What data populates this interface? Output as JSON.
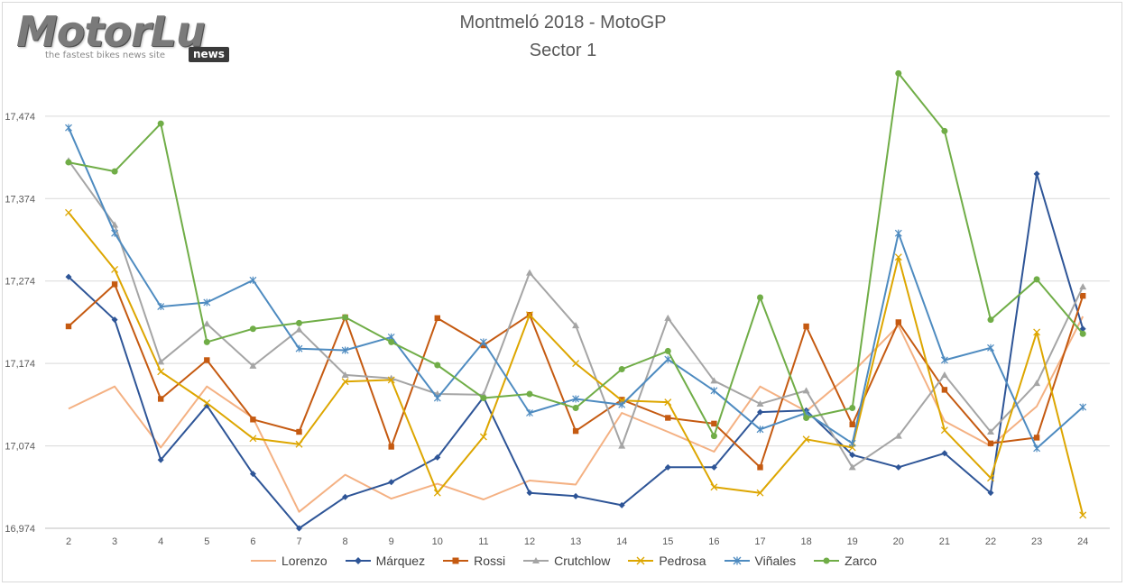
{
  "logo": {
    "brand": "MotorLu",
    "tagline": "the fastest bikes news site",
    "badge": "news"
  },
  "chart_data": {
    "type": "line",
    "title": "Montmeló 2018 - MotoGP",
    "subtitle": "Sector 1",
    "xlabel": "",
    "ylabel": "",
    "categories": [
      "2",
      "3",
      "4",
      "5",
      "6",
      "7",
      "8",
      "9",
      "10",
      "11",
      "12",
      "13",
      "14",
      "15",
      "16",
      "17",
      "18",
      "19",
      "20",
      "21",
      "22",
      "23",
      "24"
    ],
    "ylim": [
      16.974,
      17.534
    ],
    "yticks": [
      16.974,
      17.074,
      17.174,
      17.274,
      17.374,
      17.474
    ],
    "ytick_labels": [
      "16,974",
      "17,074",
      "17,174",
      "17,274",
      "17,374",
      "17,474"
    ],
    "grid": true,
    "legend": "bottom",
    "series": [
      {
        "name": "Lorenzo",
        "color": "#F4B183",
        "marker": "none",
        "values": [
          17.119,
          17.146,
          17.072,
          17.146,
          17.108,
          16.994,
          17.039,
          17.01,
          17.028,
          17.009,
          17.032,
          17.027,
          17.114,
          17.091,
          17.067,
          17.146,
          17.116,
          17.163,
          17.22,
          17.104,
          17.074,
          17.122,
          17.231
        ]
      },
      {
        "name": "Márquez",
        "color": "#2E5597",
        "marker": "diamond",
        "values": [
          17.279,
          17.227,
          17.057,
          17.123,
          17.04,
          16.974,
          17.012,
          17.03,
          17.06,
          17.133,
          17.017,
          17.013,
          17.002,
          17.048,
          17.048,
          17.115,
          17.117,
          17.063,
          17.048,
          17.065,
          17.017,
          17.404,
          17.216
        ]
      },
      {
        "name": "Rossi",
        "color": "#C55A11",
        "marker": "square",
        "values": [
          17.219,
          17.27,
          17.131,
          17.178,
          17.106,
          17.091,
          17.23,
          17.073,
          17.229,
          17.196,
          17.233,
          17.092,
          17.13,
          17.108,
          17.101,
          17.048,
          17.219,
          17.1,
          17.224,
          17.142,
          17.077,
          17.084,
          17.256
        ]
      },
      {
        "name": "Crutchlow",
        "color": "#A5A5A5",
        "marker": "triangle",
        "values": [
          17.42,
          17.342,
          17.176,
          17.222,
          17.171,
          17.215,
          17.16,
          17.156,
          17.137,
          17.136,
          17.284,
          17.22,
          17.074,
          17.229,
          17.153,
          17.125,
          17.141,
          17.048,
          17.086,
          17.16,
          17.091,
          17.15,
          17.267
        ]
      },
      {
        "name": "Pedrosa",
        "color": "#DDA600",
        "marker": "x",
        "values": [
          17.357,
          17.288,
          17.164,
          17.126,
          17.083,
          17.076,
          17.152,
          17.154,
          17.017,
          17.085,
          17.233,
          17.174,
          17.129,
          17.127,
          17.024,
          17.017,
          17.082,
          17.072,
          17.303,
          17.093,
          17.035,
          17.212,
          16.99
        ]
      },
      {
        "name": "Viñales",
        "color": "#4E8BC0",
        "marker": "star",
        "values": [
          17.46,
          17.332,
          17.243,
          17.248,
          17.275,
          17.192,
          17.19,
          17.206,
          17.132,
          17.2,
          17.114,
          17.131,
          17.124,
          17.179,
          17.141,
          17.094,
          17.114,
          17.077,
          17.332,
          17.178,
          17.193,
          17.071,
          17.121
        ]
      },
      {
        "name": "Zarco",
        "color": "#70AD47",
        "marker": "circle",
        "values": [
          17.418,
          17.407,
          17.465,
          17.2,
          17.216,
          17.223,
          17.23,
          17.2,
          17.172,
          17.132,
          17.137,
          17.12,
          17.167,
          17.189,
          17.086,
          17.254,
          17.108,
          17.12,
          17.526,
          17.456,
          17.227,
          17.276,
          17.21
        ]
      }
    ]
  }
}
